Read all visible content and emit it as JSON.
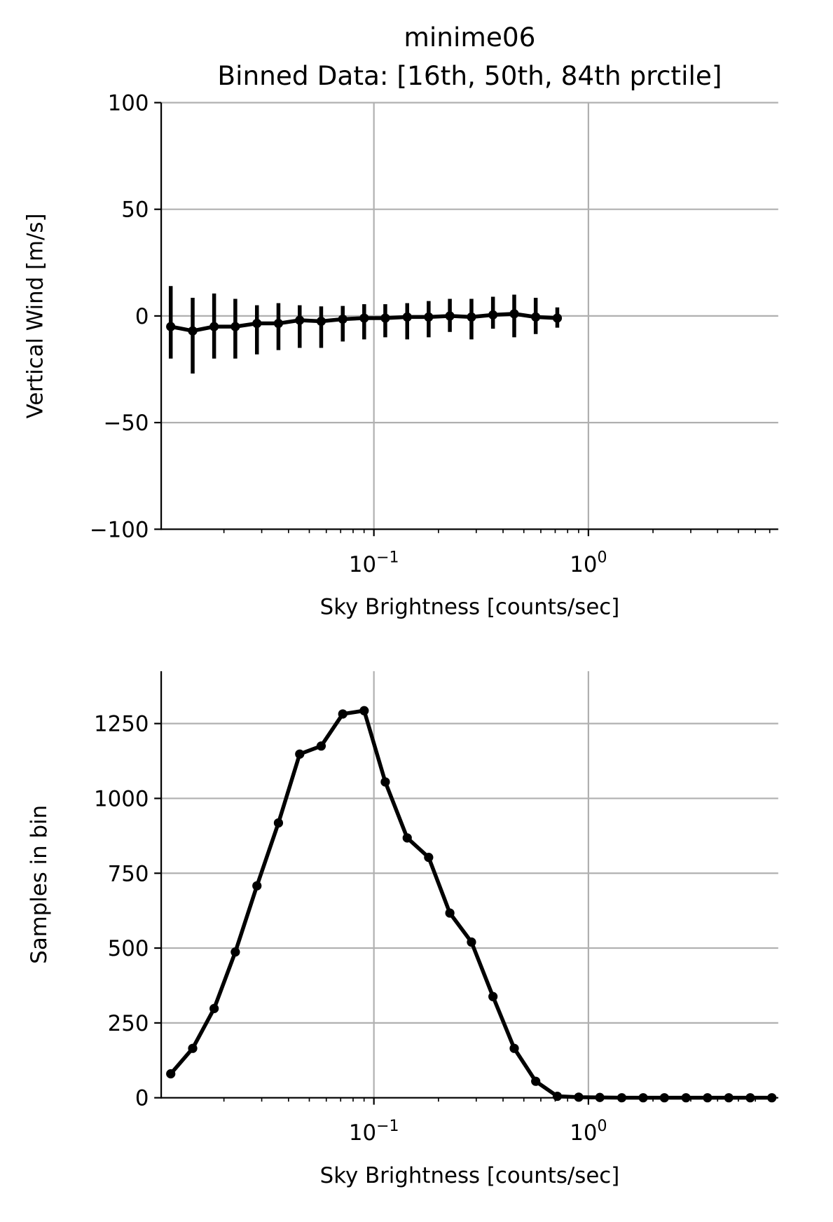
{
  "chart_data": [
    {
      "type": "errorbar",
      "title": "minime06",
      "subtitle": "Binned Data: [16th, 50th, 84th prctile]",
      "x_label": "Sky Brightness [counts/sec]",
      "y_label": "Vertical Wind [m/s]",
      "x_scale": "log",
      "grid": true,
      "color": "#000000",
      "xlim": [
        0.0102,
        7.67
      ],
      "ylim": [
        -100,
        100
      ],
      "xticks": [
        {
          "value": 0.1,
          "label": "10",
          "exponent": "−1"
        },
        {
          "value": 1,
          "label": "10",
          "exponent": "0"
        }
      ],
      "xminorticks": [
        0.02,
        0.03,
        0.04,
        0.05,
        0.06,
        0.07,
        0.08,
        0.09,
        0.2,
        0.3,
        0.4,
        0.5,
        0.6,
        0.7,
        0.8,
        0.9,
        2,
        3,
        4,
        5,
        6,
        7
      ],
      "yticks": [
        {
          "value": -100,
          "label": "−100"
        },
        {
          "value": -50,
          "label": "−50"
        },
        0,
        50,
        100
      ],
      "x": [
        0.0113,
        0.0143,
        0.018,
        0.0226,
        0.0285,
        0.0359,
        0.0451,
        0.0568,
        0.0716,
        0.0901,
        0.113,
        0.143,
        0.18,
        0.226,
        0.285,
        0.359,
        0.451,
        0.568,
        0.716
      ],
      "values": [
        -5,
        -7,
        -5,
        -5,
        -3.5,
        -3.5,
        -2,
        -2.5,
        -1.5,
        -1,
        -1,
        -0.5,
        -0.5,
        0,
        -0.5,
        0.5,
        1,
        -0.5,
        -1
      ],
      "lower": [
        -20,
        -27,
        -20,
        -20,
        -18,
        -16,
        -15,
        -15,
        -12,
        -11,
        -10,
        -11,
        -10,
        -7.5,
        -11,
        -6,
        -10,
        -8.5,
        -5.5
      ],
      "upper": [
        14,
        8.5,
        10.5,
        8,
        5,
        6,
        5,
        4.5,
        4.7,
        5.5,
        5.5,
        6,
        7,
        8,
        8,
        9,
        10,
        8.5,
        4
      ]
    },
    {
      "type": "line",
      "x_label": "Sky Brightness [counts/sec]",
      "y_label": "Samples in bin",
      "x_scale": "log",
      "grid": true,
      "color": "#000000",
      "xlim": [
        0.0102,
        7.67
      ],
      "ylim": [
        0,
        1425
      ],
      "xticks": [
        {
          "value": 0.1,
          "label": "10",
          "exponent": "−1"
        },
        {
          "value": 1,
          "label": "10",
          "exponent": "0"
        }
      ],
      "xminorticks": [
        0.02,
        0.03,
        0.04,
        0.05,
        0.06,
        0.07,
        0.08,
        0.09,
        0.2,
        0.3,
        0.4,
        0.5,
        0.6,
        0.7,
        0.8,
        0.9,
        2,
        3,
        4,
        5,
        6,
        7
      ],
      "yticks": [
        0,
        250,
        500,
        750,
        1000,
        1250
      ],
      "x": [
        0.0113,
        0.0143,
        0.018,
        0.0226,
        0.0285,
        0.0359,
        0.0451,
        0.0568,
        0.0716,
        0.0901,
        0.113,
        0.143,
        0.18,
        0.226,
        0.285,
        0.359,
        0.451,
        0.568,
        0.716,
        0.901,
        1.13,
        1.43,
        1.8,
        2.26,
        2.85,
        3.59,
        4.51,
        5.68,
        7.16
      ],
      "values": [
        80,
        165,
        298,
        487,
        708,
        918,
        1148,
        1175,
        1282,
        1293,
        1055,
        868,
        803,
        617,
        520,
        338,
        165,
        55,
        5,
        2,
        1,
        0,
        0,
        0,
        0,
        0,
        0,
        0,
        0
      ]
    }
  ]
}
